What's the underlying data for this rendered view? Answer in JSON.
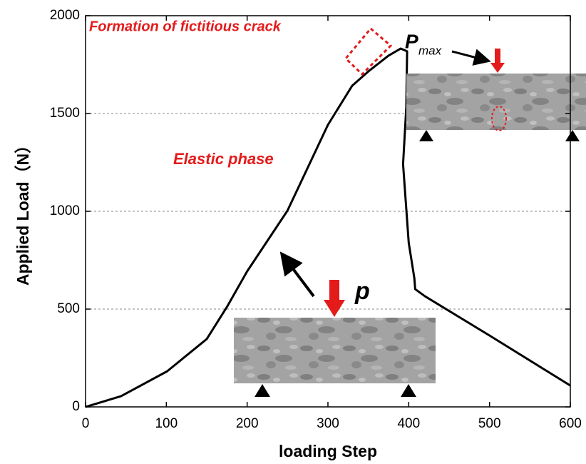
{
  "chart_data": {
    "type": "line",
    "x_label": "loading Step",
    "y_label": "Applied Load（N）",
    "x": [
      0,
      44,
      101,
      150,
      175,
      200,
      250,
      300,
      330,
      350,
      375,
      390,
      398,
      397,
      393,
      400,
      407,
      408,
      420,
      500,
      600
    ],
    "values": [
      0,
      55,
      182,
      347,
      511,
      693,
      1004,
      1442,
      1642,
      1715,
      1796,
      1832,
      1818,
      1533,
      1241,
      839,
      657,
      602,
      566,
      365,
      109
    ],
    "color": "#000000",
    "xlim": [
      0,
      600
    ],
    "xticks": [
      0,
      100,
      200,
      300,
      400,
      500,
      600
    ],
    "ylim": [
      0,
      2000
    ],
    "yticks": [
      0,
      500,
      1000,
      1500,
      2000
    ],
    "grid": true,
    "annotations": [
      "Formation of fictitious crack",
      "Elastic phase",
      "p"
    ],
    "peak_label": {
      "main": "P",
      "subscript": "max"
    }
  }
}
